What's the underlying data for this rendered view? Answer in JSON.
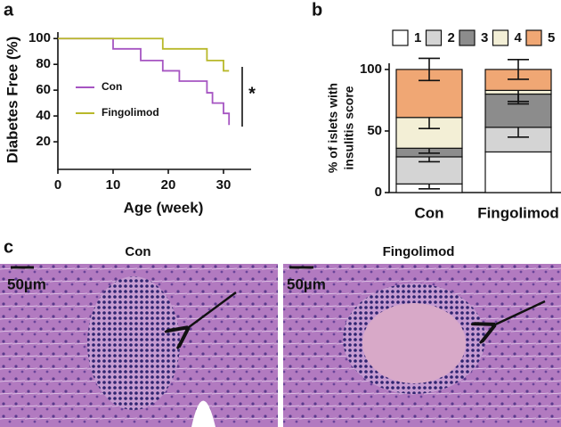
{
  "panels": {
    "a": "a",
    "b": "b",
    "c": "c"
  },
  "chart_data": [
    {
      "type": "line",
      "step": true,
      "xlabel": "Age (week)",
      "ylabel": "Diabetes Free (%)",
      "xlim": [
        0,
        35
      ],
      "xticks": [
        0,
        10,
        20,
        30
      ],
      "ylim": [
        0,
        105
      ],
      "yticks": [
        20,
        40,
        60,
        80,
        100
      ],
      "annotation": "*",
      "series": [
        {
          "name": "Con",
          "color": "#a655c2",
          "x": [
            0,
            10,
            15,
            19,
            22,
            27,
            28,
            30,
            31
          ],
          "values": [
            100,
            92,
            83,
            75,
            67,
            58,
            50,
            42,
            33
          ]
        },
        {
          "name": "Fingolimod",
          "color": "#b8b82a",
          "x": [
            0,
            19,
            27,
            30,
            31
          ],
          "values": [
            100,
            92,
            83,
            75,
            75
          ]
        }
      ]
    },
    {
      "type": "stacked-bar",
      "ylabel": [
        "% of islets with",
        "insulitis  score"
      ],
      "categories": [
        "Con",
        "Fingolimod"
      ],
      "ylim": [
        0,
        105
      ],
      "yticks": [
        0,
        50,
        100
      ],
      "series": [
        {
          "name": "1",
          "color": "#ffffff",
          "values": [
            7,
            33
          ],
          "errors": [
            4,
            0
          ]
        },
        {
          "name": "2",
          "color": "#d4d4d4",
          "values": [
            22,
            20
          ],
          "errors": [
            4,
            8
          ]
        },
        {
          "name": "3",
          "color": "#8c8c8c",
          "values": [
            7,
            27
          ],
          "errors": [
            4,
            8
          ]
        },
        {
          "name": "4",
          "color": "#f3efd6",
          "values": [
            25,
            3
          ],
          "errors": [
            9,
            9
          ]
        },
        {
          "name": "5",
          "color": "#f0a774",
          "values": [
            39,
            17
          ],
          "errors": [
            9,
            8
          ]
        }
      ]
    }
  ],
  "micrographs": [
    {
      "title": "Con",
      "scale": "50µm"
    },
    {
      "title": "Fingolimod",
      "scale": "50µm"
    }
  ]
}
